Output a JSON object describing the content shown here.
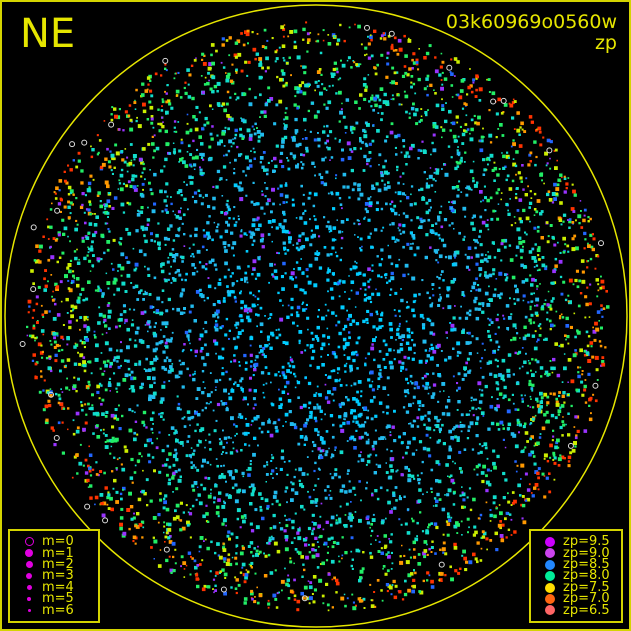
{
  "camera_direction": "NE",
  "frame_id": "03k60969o0560w",
  "color_mode": "zp",
  "horizon_color": "#e6e600",
  "magnitude_legend": [
    {
      "label": "m=0",
      "size": 9,
      "hollow": true
    },
    {
      "label": "m=1",
      "size": 8
    },
    {
      "label": "m=2",
      "size": 7
    },
    {
      "label": "m=3",
      "size": 6
    },
    {
      "label": "m=4",
      "size": 5
    },
    {
      "label": "m=5",
      "size": 4
    },
    {
      "label": "m=6",
      "size": 3
    }
  ],
  "magnitude_color": "#e000e0",
  "zp_legend": [
    {
      "label": "zp=9.5",
      "color": "#cc00ff"
    },
    {
      "label": "zp=9.0",
      "color": "#cc44ee"
    },
    {
      "label": "zp=8.5",
      "color": "#2288ff"
    },
    {
      "label": "zp=8.0",
      "color": "#00ee99"
    },
    {
      "label": "zp=7.5",
      "color": "#ffdd00"
    },
    {
      "label": "zp=7.0",
      "color": "#ff6611"
    },
    {
      "label": "zp=6.5",
      "color": "#ff6666"
    }
  ]
}
